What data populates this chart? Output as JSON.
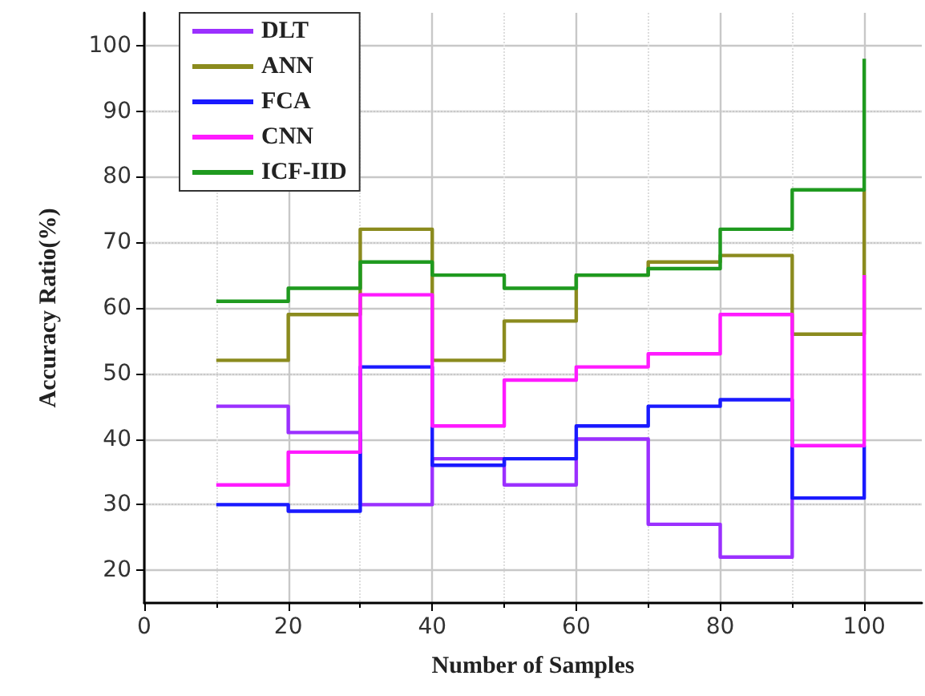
{
  "chart_data": {
    "type": "step",
    "xlabel": "Number of Samples",
    "ylabel": "Accuracy Ratio(%)",
    "x": [
      10,
      20,
      30,
      40,
      50,
      60,
      70,
      80,
      90,
      100
    ],
    "series": [
      {
        "name": "DLT",
        "color": "#9b30ff",
        "x": [
          10,
          20,
          30,
          40,
          50,
          60,
          70,
          80,
          90
        ],
        "values": [
          45,
          41,
          30,
          37,
          33,
          40,
          27,
          22,
          39
        ]
      },
      {
        "name": "ANN",
        "color": "#8b8b1e",
        "values": [
          52,
          59,
          72,
          52,
          58,
          65,
          67,
          68,
          56,
          78
        ]
      },
      {
        "name": "FCA",
        "color": "#1a1aff",
        "values": [
          30,
          29,
          51,
          36,
          37,
          42,
          45,
          46,
          31,
          39
        ]
      },
      {
        "name": "CNN",
        "color": "#ff1aff",
        "values": [
          33,
          38,
          62,
          42,
          49,
          51,
          53,
          59,
          39,
          65
        ]
      },
      {
        "name": "ICF-IID",
        "color": "#1f9a1f",
        "values": [
          61,
          63,
          67,
          65,
          63,
          65,
          66,
          72,
          78,
          98
        ]
      }
    ],
    "xlim": [
      0,
      108
    ],
    "xticks": [
      0,
      20,
      40,
      60,
      80,
      100
    ],
    "ylim": [
      15,
      105
    ],
    "yticks": [
      20,
      30,
      40,
      50,
      60,
      70,
      80,
      90,
      100
    ],
    "grid": true,
    "legend": "top left",
    "marker": "none",
    "line_style": "solid"
  }
}
